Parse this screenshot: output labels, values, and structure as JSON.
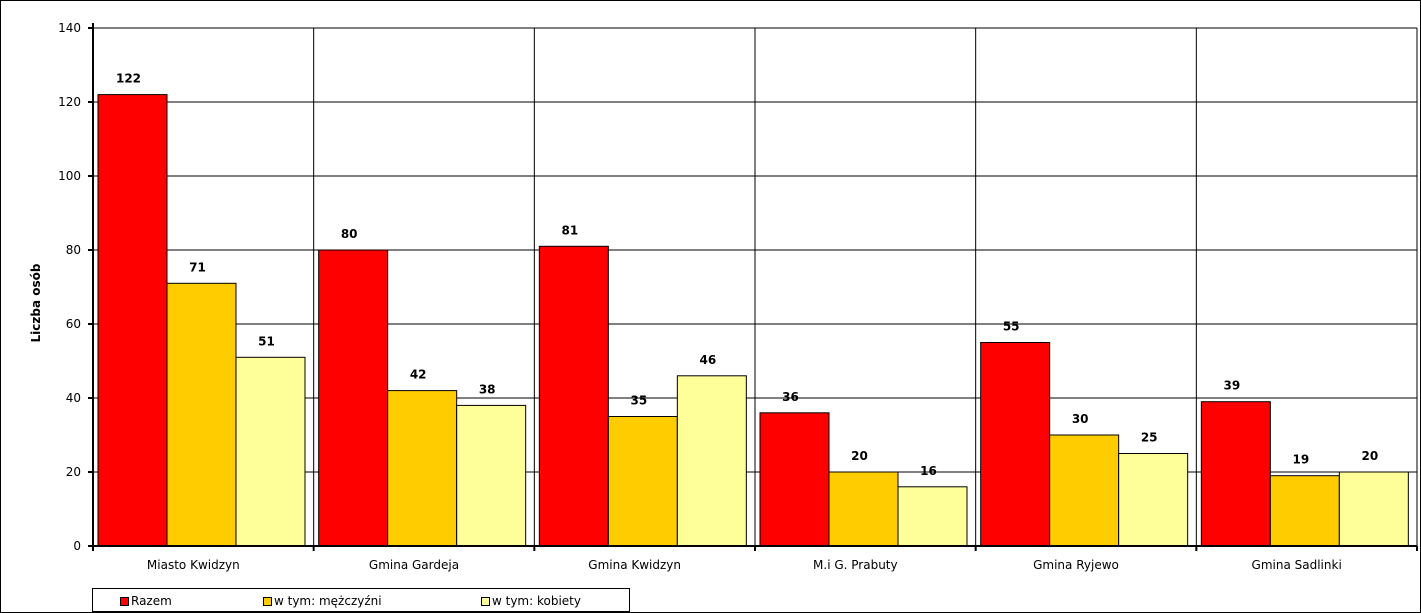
{
  "chart_data": {
    "type": "bar",
    "ylabel": "Liczba osób",
    "xlabel": "",
    "ylim": [
      0,
      140
    ],
    "yticks": [
      0,
      20,
      40,
      60,
      80,
      100,
      120,
      140
    ],
    "grid": true,
    "legend_position": "bottom-left",
    "categories": [
      "Miasto Kwidzyn",
      "Gmina Gardeja",
      "Gmina Kwidzyn",
      "M.i G. Prabuty",
      "Gmina Ryjewo",
      "Gmina Sadlinki"
    ],
    "series": [
      {
        "name": "Razem",
        "color": "#ff0000",
        "values": [
          122,
          80,
          81,
          36,
          55,
          39
        ]
      },
      {
        "name": "w tym: mężczyźni",
        "color": "#ffcc00",
        "values": [
          71,
          42,
          35,
          20,
          30,
          19
        ]
      },
      {
        "name": "w tym: kobiety",
        "color": "#ffff99",
        "values": [
          51,
          38,
          46,
          16,
          25,
          20
        ]
      }
    ]
  }
}
